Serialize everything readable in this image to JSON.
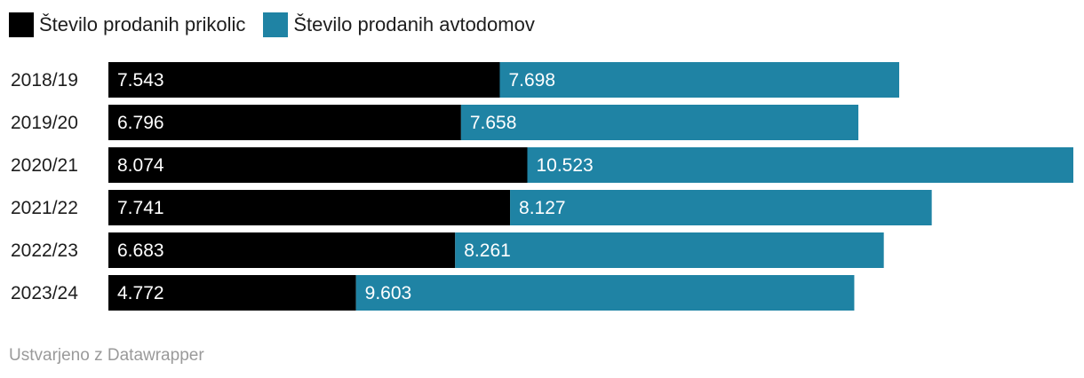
{
  "chart_data": {
    "type": "bar",
    "orientation": "horizontal",
    "stacked": true,
    "categories": [
      "2018/19",
      "2019/20",
      "2020/21",
      "2021/22",
      "2022/23",
      "2023/24"
    ],
    "series": [
      {
        "name": "Število prodanih prikolic",
        "color": "#000000",
        "values": [
          7543,
          6796,
          8074,
          7741,
          6683,
          4772
        ],
        "labels": [
          "7.543",
          "6.796",
          "8.074",
          "7.741",
          "6.683",
          "4.772"
        ]
      },
      {
        "name": "Število prodanih avtodomov",
        "color": "#1f83a4",
        "values": [
          7698,
          7658,
          10523,
          8127,
          8261,
          9603
        ],
        "labels": [
          "7.698",
          "7.658",
          "10.523",
          "8.127",
          "8.261",
          "9.603"
        ]
      }
    ],
    "xlim": [
      0,
      18597
    ],
    "grid": false,
    "legend": "top-left",
    "title": "",
    "xlabel": "",
    "ylabel": ""
  },
  "footer": {
    "credit": "Ustvarjeno z Datawrapper"
  }
}
